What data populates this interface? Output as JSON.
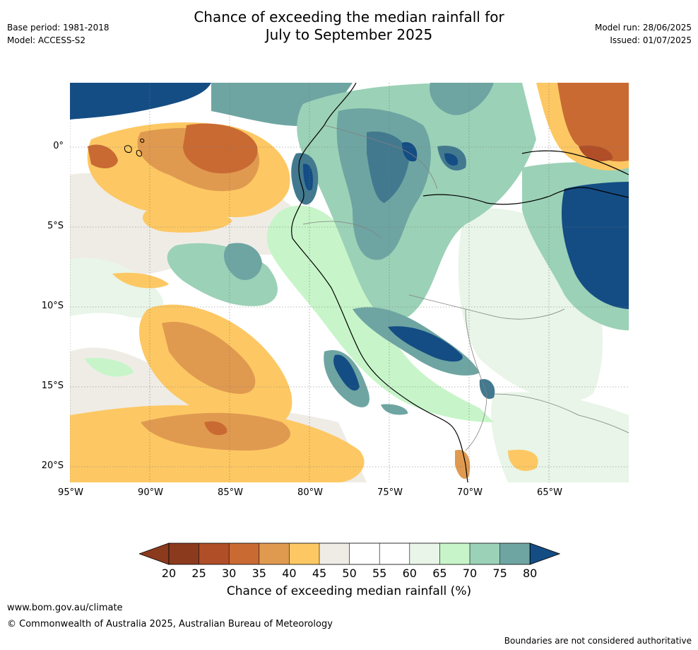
{
  "header": {
    "title_line1": "Chance of exceeding the median rainfall for",
    "title_line2": "July to September 2025",
    "base_period": "Base period: 1981-2018",
    "model": "Model: ACCESS-S2",
    "model_run": "Model run: 28/06/2025",
    "issued": "Issued: 01/07/2025"
  },
  "map": {
    "lat_labels": [
      "0°",
      "5°S",
      "10°S",
      "15°S",
      "20°S"
    ],
    "lon_labels": [
      "95°W",
      "90°W",
      "85°W",
      "80°W",
      "75°W",
      "70°W",
      "65°W"
    ],
    "colors": {
      "c20": "#8c3a1e",
      "c25": "#b04e28",
      "c30": "#c96a33",
      "c35": "#e09a50",
      "c40": "#fdc863",
      "c45": "#efece6",
      "c50": "#ffffff",
      "c55": "#ffffff",
      "c60": "#e8f5e8",
      "c65": "#c7f5c9",
      "c70": "#9bd1b7",
      "c75": "#6ea5a2",
      "c80": "#42798f",
      "c85": "#144d84"
    },
    "coastline_icon": "coastline-lines",
    "grid": "dotted"
  },
  "colorbar": {
    "ticks": [
      "20",
      "25",
      "30",
      "35",
      "40",
      "45",
      "50",
      "55",
      "60",
      "65",
      "70",
      "75",
      "80"
    ],
    "title": "Chance of exceeding median rainfall (%)"
  },
  "footer": {
    "website": "www.bom.gov.au/climate",
    "copyright": "© Commonwealth of Australia 2025, Australian Bureau of Meteorology",
    "disclaimer": "Boundaries are not considered authoritative"
  }
}
